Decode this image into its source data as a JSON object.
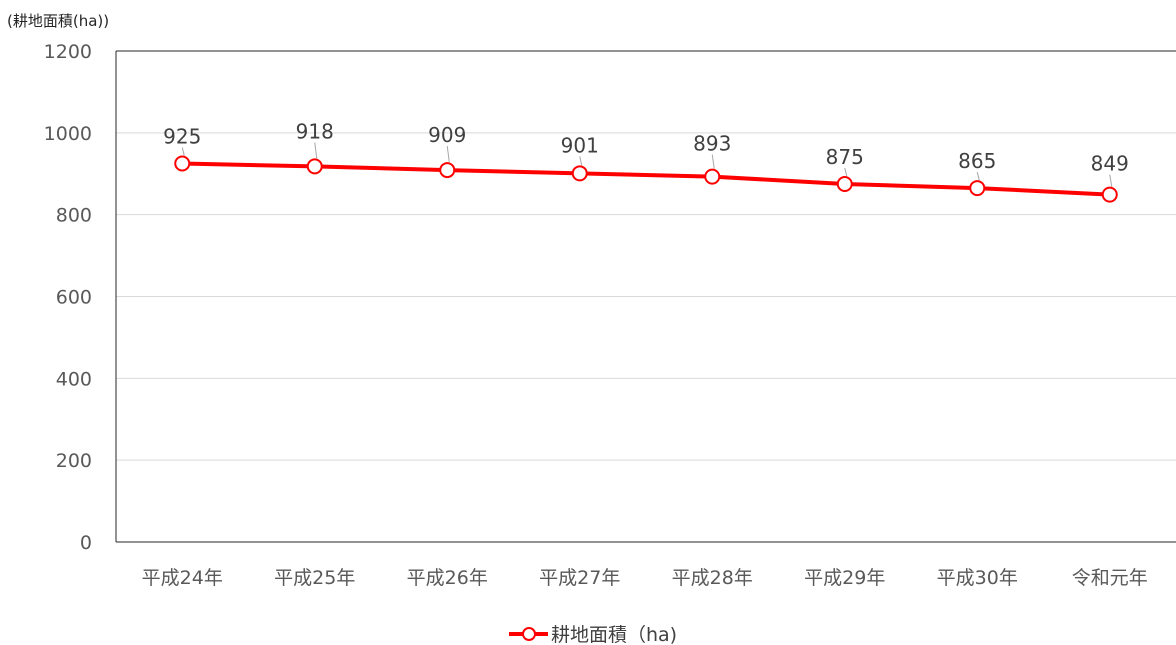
{
  "chart_data": {
    "type": "line",
    "ylabel": "(耕地面積(ha))",
    "ylim": [
      0,
      1200
    ],
    "yticks": [
      0,
      200,
      400,
      600,
      800,
      1000,
      1200
    ],
    "categories": [
      "平成24年",
      "平成25年",
      "平成26年",
      "平成27年",
      "平成28年",
      "平成29年",
      "平成30年",
      "令和元年"
    ],
    "series": [
      {
        "name": "耕地面積（ha)",
        "values": [
          925,
          918,
          909,
          901,
          893,
          875,
          865,
          849
        ],
        "color": "#ff0000",
        "marker": "open-circle"
      }
    ],
    "data_labels": true,
    "grid": "horizontal",
    "legend_position": "bottom-center"
  }
}
